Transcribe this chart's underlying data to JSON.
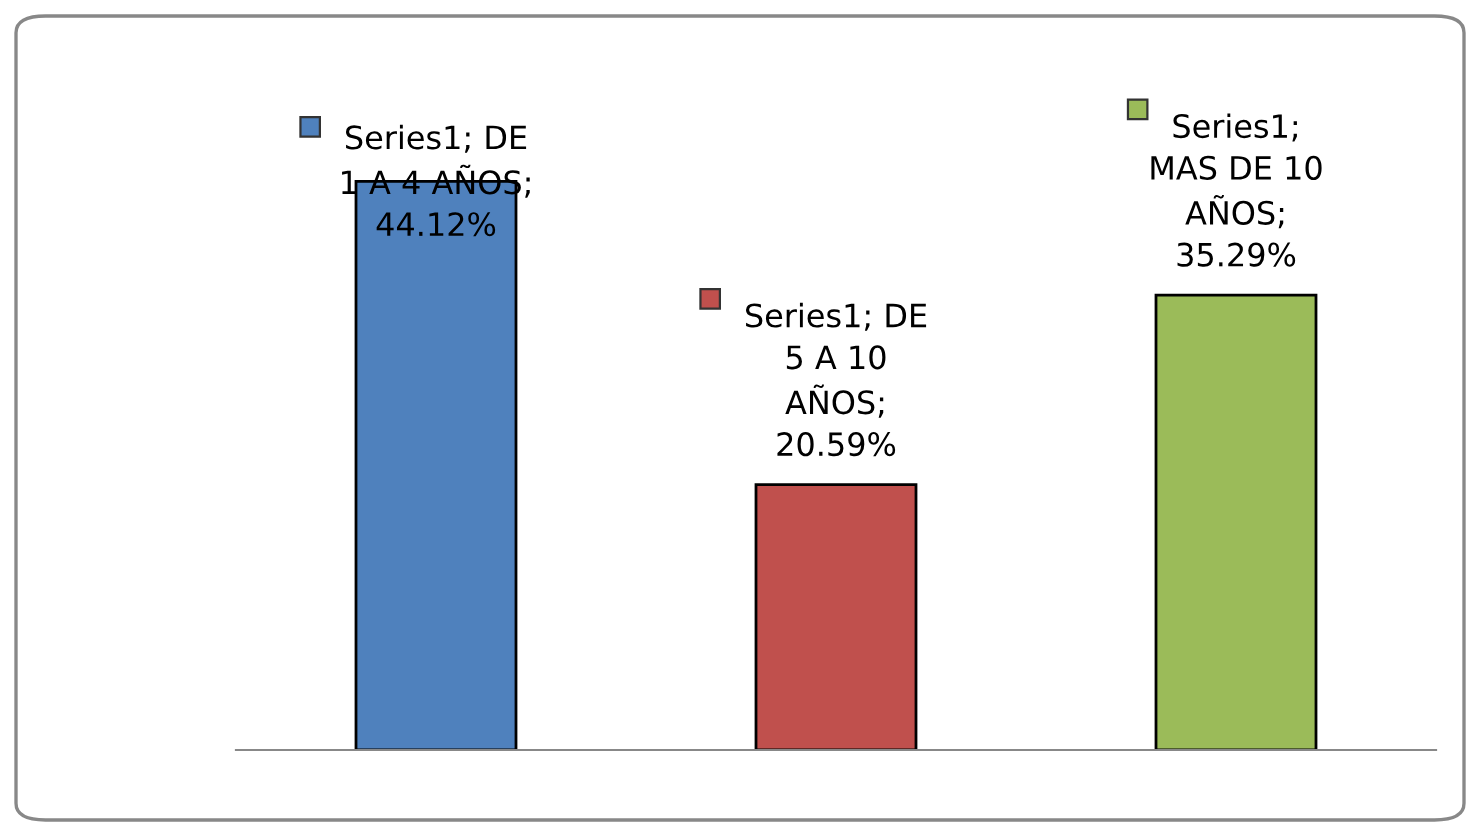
{
  "chart_data": {
    "type": "bar",
    "categories": [
      null,
      null,
      null
    ],
    "values": [
      44.12,
      20.59,
      35.29
    ],
    "colors": [
      "#4f81bd",
      "#c0504d",
      "#9bbb59"
    ],
    "value_labels": [
      "Series1; DE\n1 A 4 AÑOS;\n44.12%",
      "Series1; DE\n5 A 10\nAÑOS;\n20.59%",
      "Series1;\nMAS DE 10\nAÑOS;\n35.29%"
    ],
    "grid": false,
    "legend": false
  }
}
